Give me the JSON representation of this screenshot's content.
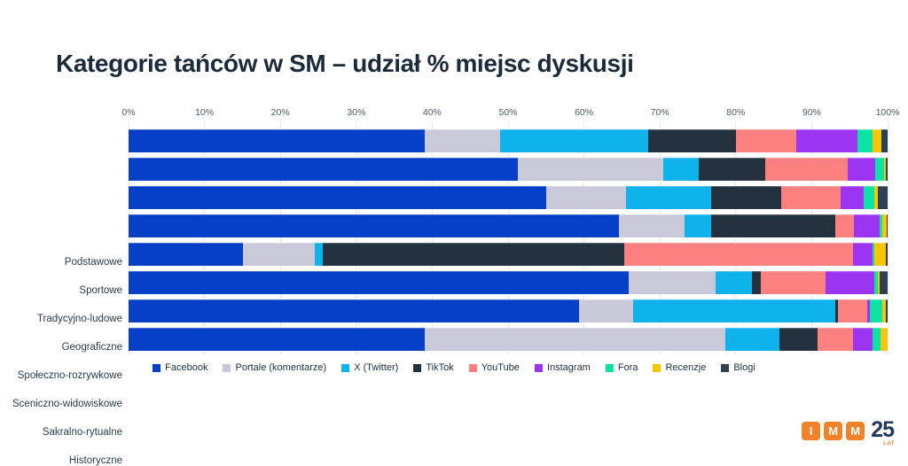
{
  "title": "Kategorie tańców w SM – udział % miejsc dyskusji",
  "chart_data": {
    "type": "bar",
    "orientation": "horizontal",
    "stacked": true,
    "unit": "percent",
    "title": "Kategorie tańców w SM – udział % miejsc dyskusji",
    "xlim": [
      0,
      100
    ],
    "x_ticks": [
      "0%",
      "10%",
      "20%",
      "30%",
      "40%",
      "50%",
      "60%",
      "70%",
      "80%",
      "90%",
      "100%"
    ],
    "grid": "vertical",
    "legend_position": "bottom",
    "categories": [
      "Podstawowe",
      "Sportowe",
      "Tradycyjno-ludowe",
      "Geograficzne",
      "Społeczno-rozrywkowe",
      "Sceniczno-widowiskowe",
      "Sakralno-rytualne",
      "Historyczne"
    ],
    "series": [
      {
        "name": "Facebook",
        "color": "#0541c8",
        "values": [
          39.0,
          51.3,
          55.0,
          64.6,
          15.1,
          65.9,
          59.3,
          39.0
        ]
      },
      {
        "name": "Portale (komentarze)",
        "color": "#c9c9d9",
        "values": [
          10.0,
          19.2,
          10.5,
          8.7,
          9.4,
          11.4,
          7.2,
          39.6
        ]
      },
      {
        "name": "X (Twitter)",
        "color": "#0db3ea",
        "values": [
          19.5,
          4.6,
          11.2,
          3.4,
          1.1,
          4.8,
          26.6,
          7.2
        ]
      },
      {
        "name": "TikTok",
        "color": "#243240",
        "values": [
          11.5,
          8.8,
          9.3,
          16.4,
          39.7,
          1.2,
          0.4,
          5.0
        ]
      },
      {
        "name": "YouTube",
        "color": "#fc8080",
        "values": [
          8.0,
          10.9,
          7.8,
          2.5,
          30.1,
          8.5,
          3.8,
          4.6
        ]
      },
      {
        "name": "Instagram",
        "color": "#9b35f2",
        "values": [
          8.0,
          3.6,
          3.0,
          3.3,
          2.6,
          6.4,
          0.4,
          2.6
        ]
      },
      {
        "name": "Fora",
        "color": "#0be3a5",
        "values": [
          2.0,
          1.1,
          1.5,
          0.4,
          0.3,
          0.5,
          1.6,
          1.1
        ]
      },
      {
        "name": "Recenzje",
        "color": "#f9c606",
        "values": [
          1.2,
          0.3,
          0.4,
          0.6,
          1.5,
          0.3,
          0.5,
          0.9
        ]
      },
      {
        "name": "Blogi",
        "color": "#2e4053",
        "values": [
          0.8,
          0.2,
          1.3,
          0.1,
          0.2,
          1.0,
          0.2,
          0.0
        ]
      }
    ]
  },
  "logo": {
    "tiles": [
      "I",
      "M",
      "M"
    ],
    "number": "25",
    "caption": "LAT",
    "tile_color": "#f08229",
    "number_color": "#21395a",
    "caption_color": "#f08229"
  }
}
